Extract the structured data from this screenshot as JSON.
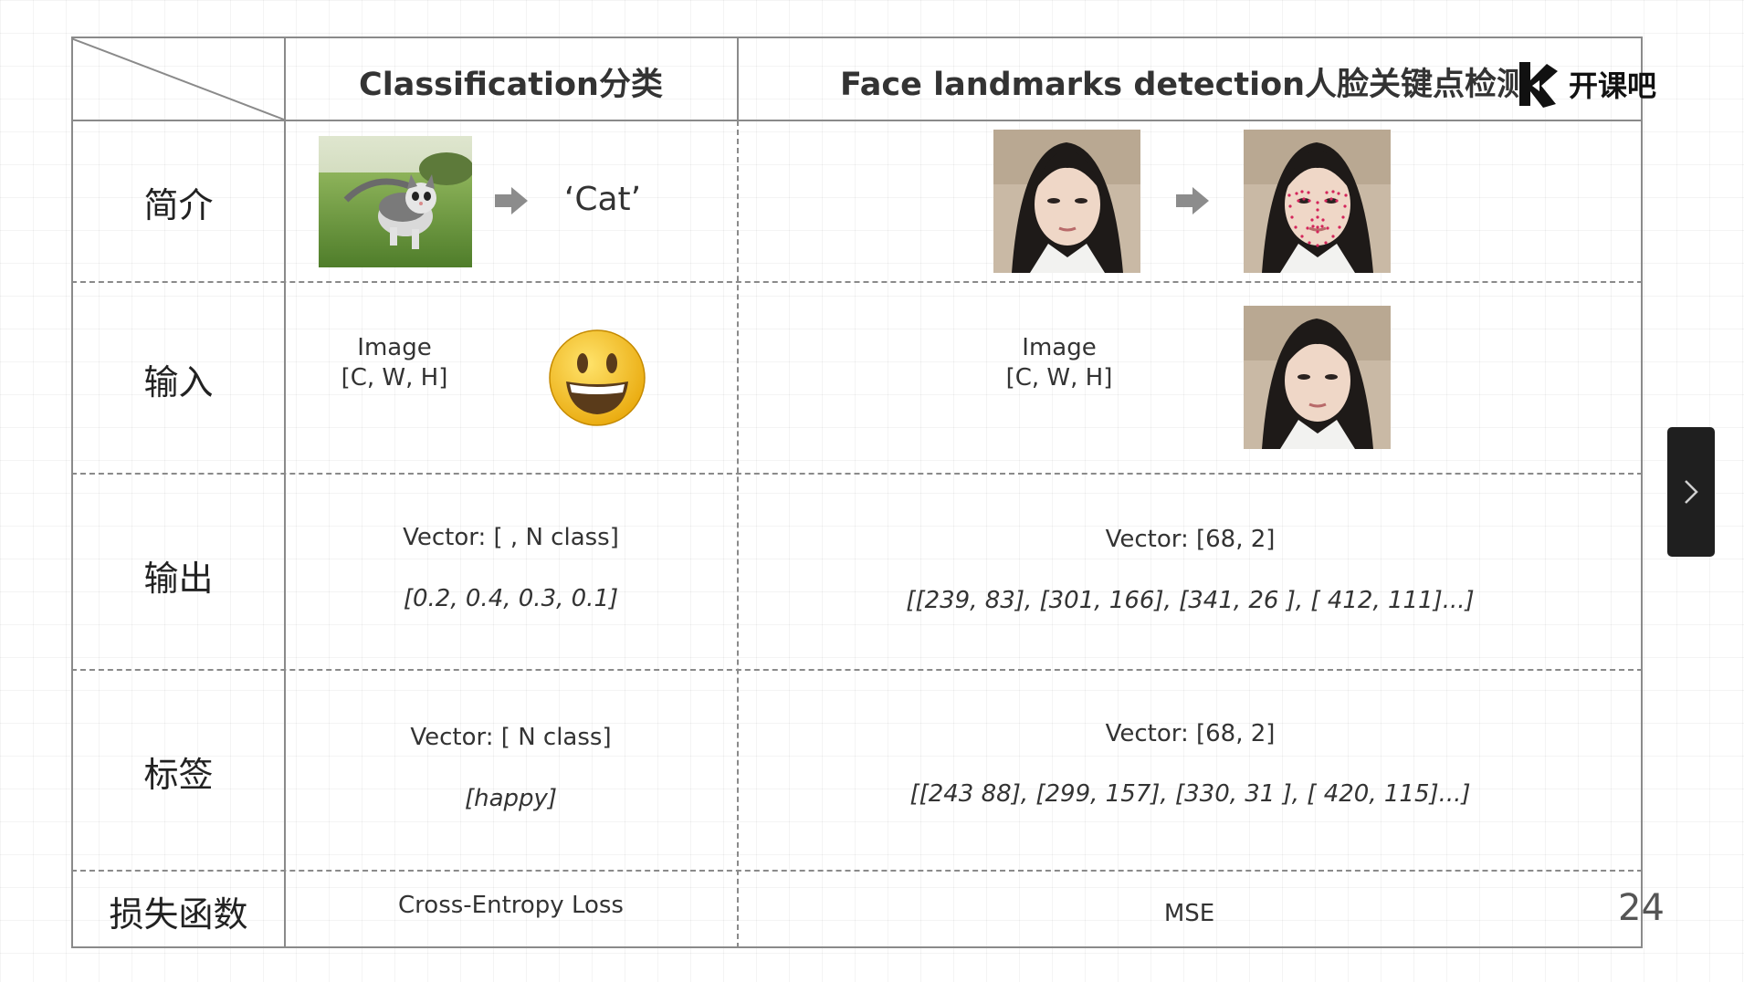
{
  "header": {
    "classification": "Classification分类",
    "face": "Face landmarks detection人脸关键点检测"
  },
  "logo": {
    "text": "开课吧"
  },
  "rows": {
    "intro": {
      "label": "简介",
      "class_output": "‘Cat’"
    },
    "input": {
      "label": "输入",
      "class_line1": "Image",
      "class_line2": "[C, W, H]",
      "face_line1": "Image",
      "face_line2": "[C, W, H]"
    },
    "output": {
      "label": "输出",
      "class_line1": "Vector: [ , N class]",
      "class_line2": "[0.2, 0.4, 0.3, 0.1]",
      "face_line1": "Vector: [68, 2]",
      "face_line2": "[[239, 83], [301, 166], [341, 26 ], [ 412, 111]...]"
    },
    "label_row": {
      "label": "标签",
      "class_line1": "Vector: [ N class]",
      "class_line2": "[happy]",
      "face_line1": "Vector: [68, 2]",
      "face_line2": "[[243 88], [299, 157], [330, 31 ], [ 420, 115]...]"
    },
    "loss": {
      "label": "损失函数",
      "class_value": "Cross-Entropy Loss",
      "face_value": "MSE"
    }
  },
  "page_number": "24",
  "colors": {
    "grid_line": "#8a8a8a",
    "arrow": "#8c8c8c",
    "next_button": "#1f1f1f",
    "smiley": "#f7c31a"
  },
  "icons": {
    "arrow": "right-arrow-icon",
    "smiley": "smiley-face-icon",
    "next": "chevron-right-icon",
    "logo": "kaikeba-logo-icon"
  }
}
